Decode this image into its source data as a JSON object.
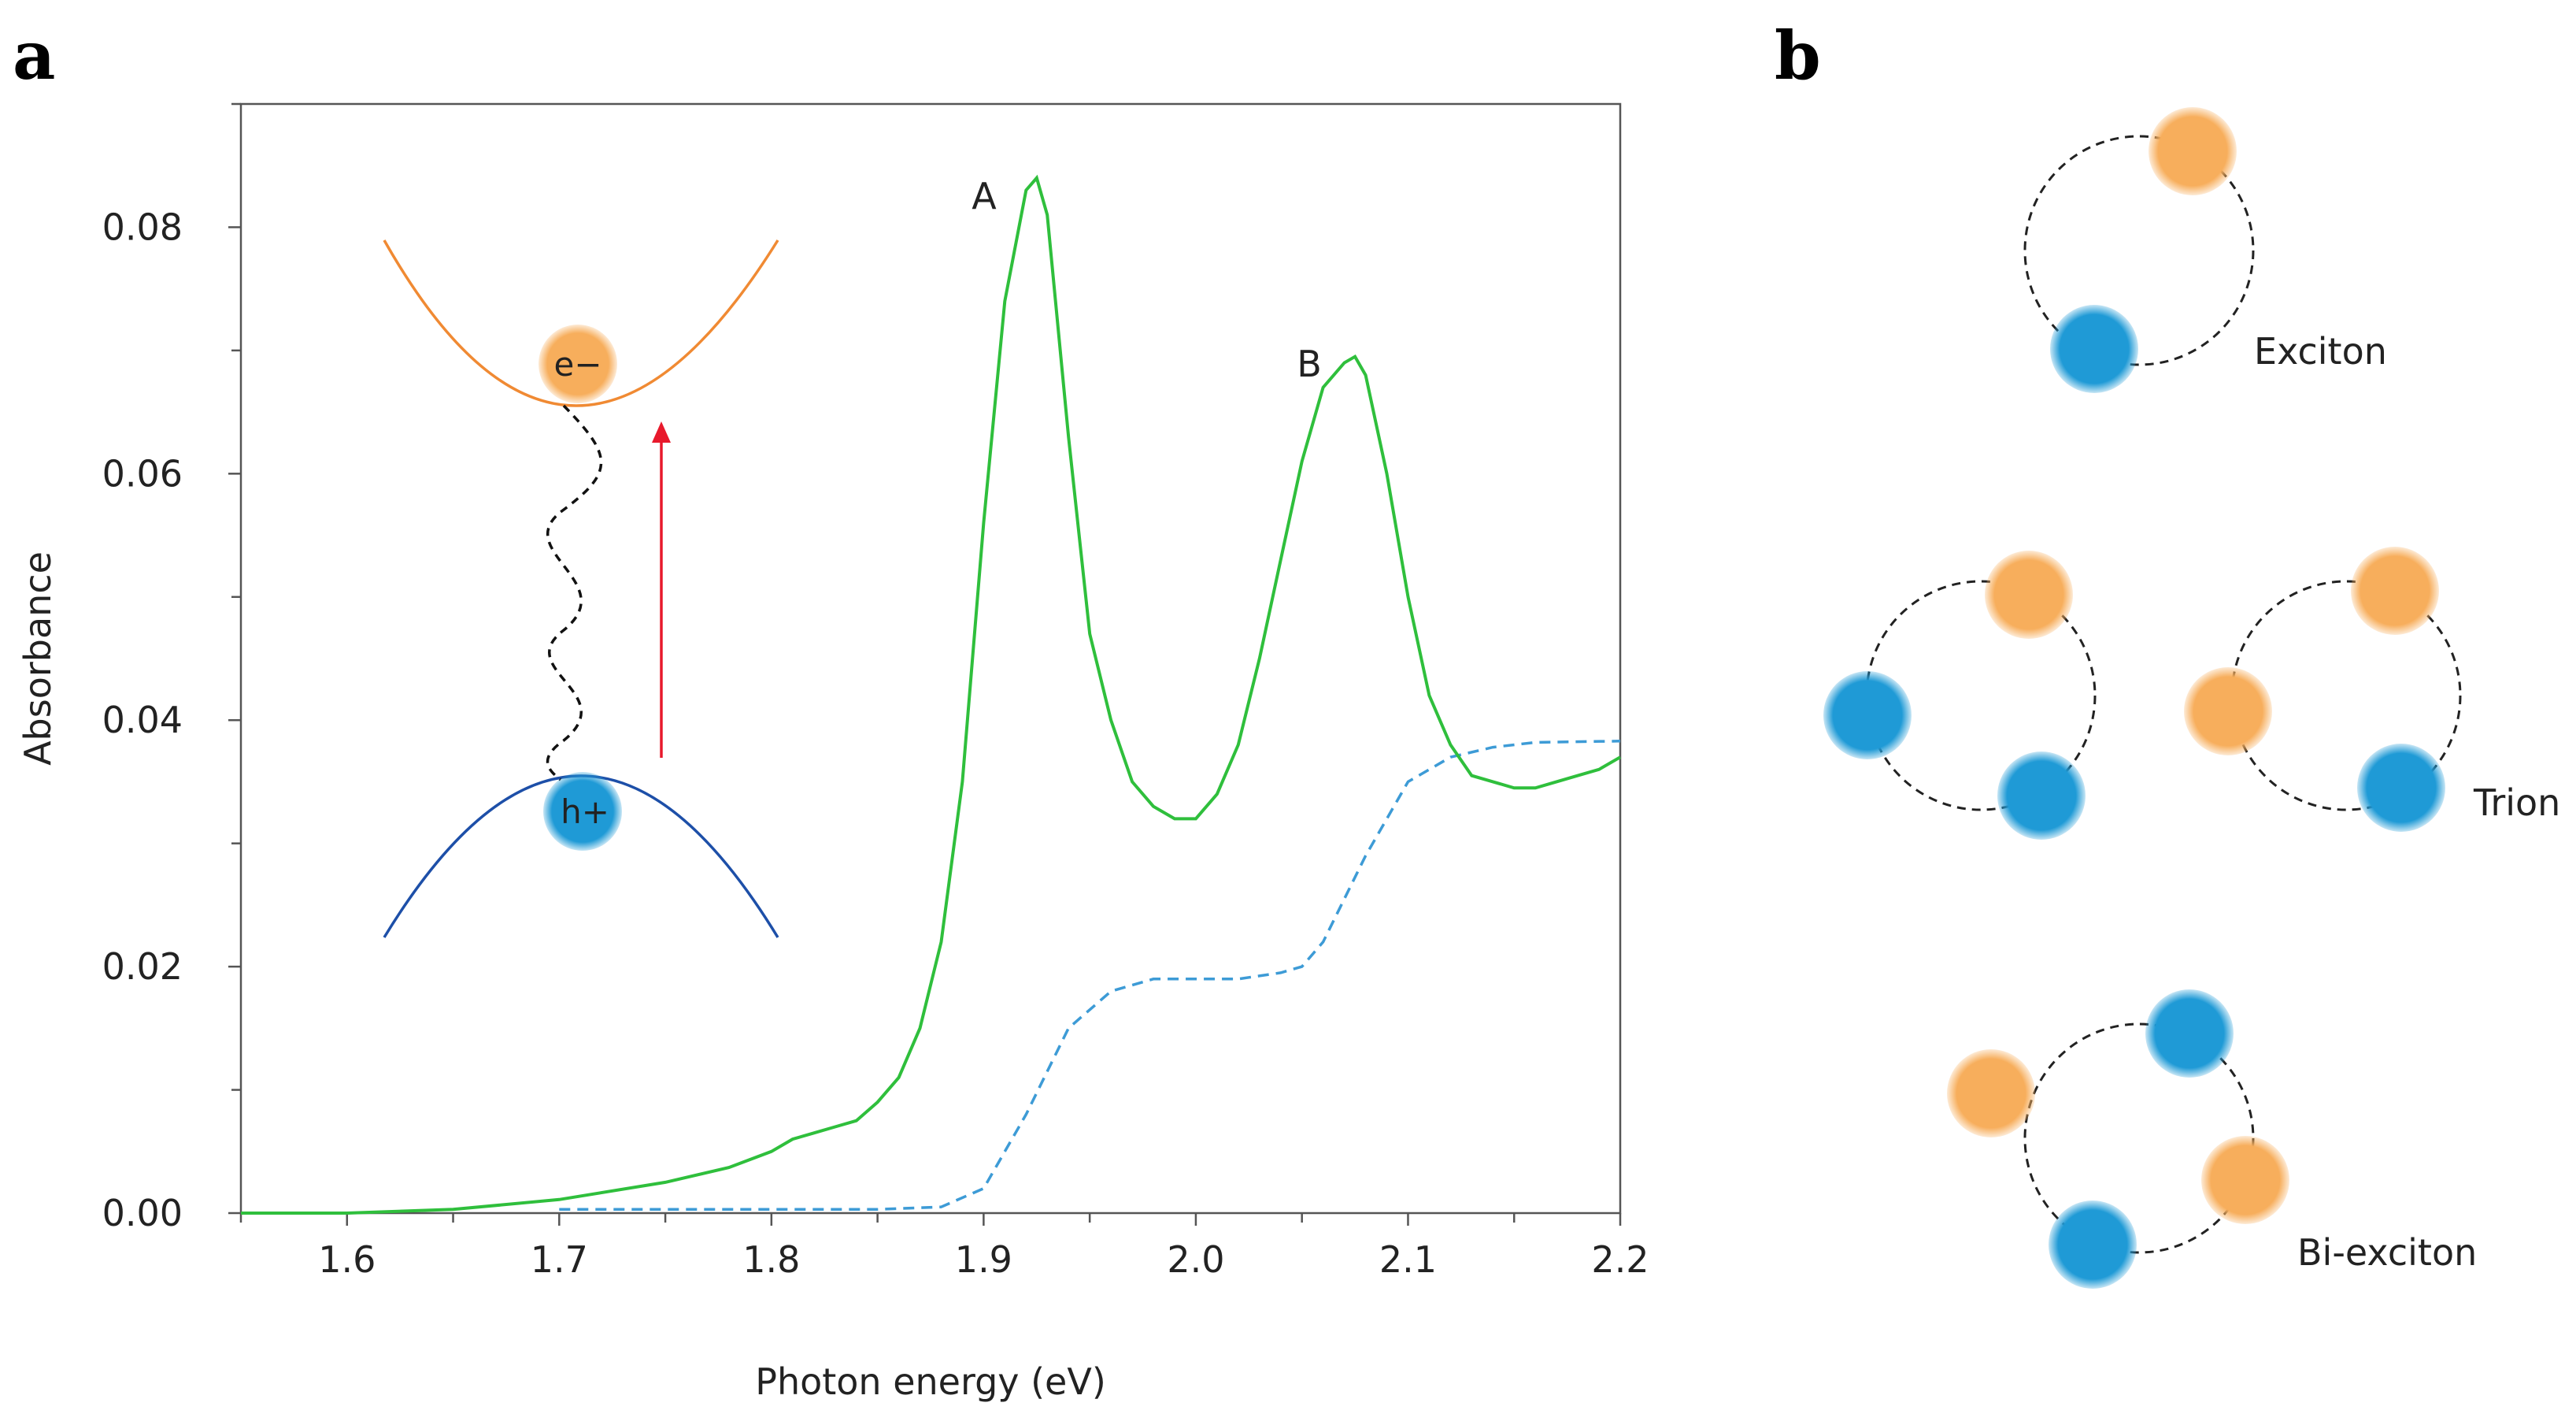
{
  "panels": {
    "a": "a",
    "b": "b"
  },
  "colors": {
    "absorbance_curve": "#2fbf3c",
    "continuum_curve": "#3d9bd6",
    "electron": "#f7ae5c",
    "hole": "#1f9ad6",
    "conduction_band": "#f08a33",
    "valence_band": "#1d4fa8",
    "excitation_arrow": "#e8192c",
    "binding_line": "#000000"
  },
  "chart_data": {
    "type": "line",
    "xlabel": "Photon energy (eV)",
    "ylabel": "Absorbance",
    "xlim": [
      1.55,
      2.2
    ],
    "ylim": [
      0.0,
      0.09
    ],
    "xticks": [
      1.6,
      1.7,
      1.8,
      1.9,
      2.0,
      2.1,
      2.2
    ],
    "xtick_labels": [
      "1.6",
      "1.7",
      "1.8",
      "1.9",
      "2.0",
      "2.1",
      "2.2"
    ],
    "yticks": [
      0.0,
      0.02,
      0.04,
      0.06,
      0.08
    ],
    "ytick_labels": [
      "0.00",
      "0.02",
      "0.04",
      "0.06",
      "0.08"
    ],
    "grid": false,
    "series": [
      {
        "name": "absorbance",
        "style": "solid",
        "x": [
          1.55,
          1.6,
          1.65,
          1.7,
          1.75,
          1.78,
          1.8,
          1.81,
          1.82,
          1.83,
          1.84,
          1.85,
          1.86,
          1.87,
          1.88,
          1.89,
          1.9,
          1.91,
          1.92,
          1.925,
          1.93,
          1.94,
          1.95,
          1.96,
          1.97,
          1.98,
          1.99,
          2.0,
          2.01,
          2.02,
          2.03,
          2.04,
          2.05,
          2.06,
          2.07,
          2.075,
          2.08,
          2.09,
          2.1,
          2.11,
          2.12,
          2.13,
          2.14,
          2.15,
          2.16,
          2.17,
          2.18,
          2.19,
          2.2
        ],
        "y": [
          0.0,
          0.0,
          0.0003,
          0.0011,
          0.0025,
          0.0037,
          0.005,
          0.006,
          0.0065,
          0.007,
          0.0075,
          0.009,
          0.011,
          0.015,
          0.022,
          0.035,
          0.056,
          0.074,
          0.083,
          0.084,
          0.081,
          0.063,
          0.047,
          0.04,
          0.035,
          0.033,
          0.032,
          0.032,
          0.034,
          0.038,
          0.045,
          0.053,
          0.061,
          0.067,
          0.069,
          0.0695,
          0.068,
          0.06,
          0.05,
          0.042,
          0.038,
          0.0355,
          0.035,
          0.0345,
          0.0345,
          0.035,
          0.0355,
          0.036,
          0.037
        ]
      },
      {
        "name": "continuum",
        "style": "dashed",
        "x": [
          1.7,
          1.75,
          1.8,
          1.85,
          1.88,
          1.9,
          1.92,
          1.94,
          1.96,
          1.98,
          2.0,
          2.02,
          2.04,
          2.05,
          2.06,
          2.08,
          2.1,
          2.12,
          2.14,
          2.16,
          2.2
        ],
        "y": [
          0.0003,
          0.0003,
          0.0003,
          0.0003,
          0.0005,
          0.002,
          0.008,
          0.015,
          0.018,
          0.019,
          0.019,
          0.019,
          0.0195,
          0.02,
          0.022,
          0.029,
          0.035,
          0.037,
          0.0378,
          0.0382,
          0.0383
        ]
      }
    ],
    "annotations": [
      "A",
      "B"
    ],
    "inset": {
      "electron_label": "e−",
      "hole_label": "h+"
    }
  },
  "diagram": {
    "labels": {
      "exciton": "Exciton",
      "trion": "Trion",
      "biexciton": "Bi-exciton"
    }
  }
}
